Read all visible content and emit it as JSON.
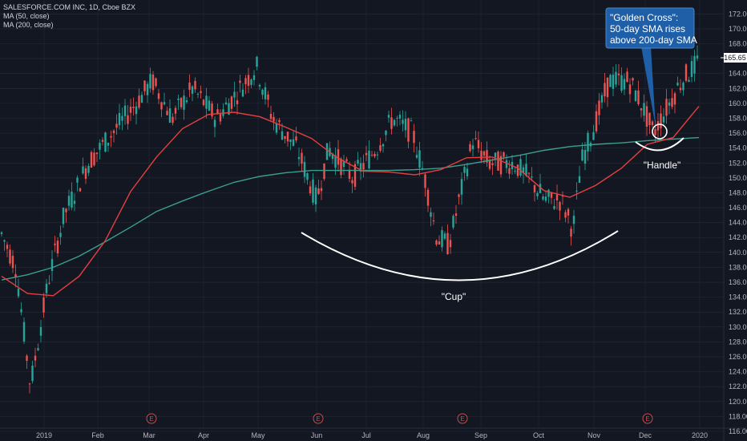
{
  "legend": {
    "symbol": "SALESFORCE.COM INC, 1D, Cboe BZX",
    "ma50": "MA (50, close)",
    "ma200": "MA (200, close)"
  },
  "colors": {
    "background": "#131722",
    "grid": "#262b3a",
    "up": "#26a69a",
    "down": "#ef5350",
    "ma50": "#e53f3f",
    "ma200": "#3b9e8f",
    "annotation": "#ffffff",
    "callout": "#1f5fa8",
    "earnings": "#c74d47",
    "price_tag": "#ffffff"
  },
  "chart_data": {
    "type": "candlestick",
    "ylim": [
      116,
      173
    ],
    "y_ticks": [
      "116.00",
      "118.00",
      "120.00",
      "122.00",
      "124.00",
      "126.00",
      "128.00",
      "130.00",
      "132.00",
      "134.00",
      "136.00",
      "138.00",
      "140.00",
      "142.00",
      "144.00",
      "146.00",
      "148.00",
      "150.00",
      "152.00",
      "154.00",
      "156.00",
      "158.00",
      "160.00",
      "162.00",
      "164.00",
      "166.00",
      "168.00",
      "170.00",
      "172.00"
    ],
    "x_labels": [
      "2019",
      "Feb",
      "Mar",
      "Apr",
      "May",
      "Jun",
      "Jul",
      "Aug",
      "Sep",
      "Oct",
      "Nov",
      "Dec",
      "2020"
    ],
    "last_price": "165.65",
    "earnings_marker": "E",
    "earnings_months": [
      "Mar",
      "Jun",
      "Sep",
      "Dec"
    ],
    "series": [
      {
        "name": "MA (50, close)",
        "values": [
          136.8,
          134.5,
          134.2,
          136.8,
          141.5,
          148.2,
          152.8,
          156.6,
          158.5,
          158.8,
          158.2,
          156.8,
          155.3,
          152.7,
          150.9,
          150.8,
          150.4,
          151.1,
          152.7,
          152.8,
          151.3,
          148.3,
          147.4,
          149.0,
          151.3,
          154.5,
          155.4,
          159.6
        ]
      },
      {
        "name": "MA (200, close)",
        "values": [
          136.3,
          137.0,
          138.0,
          139.5,
          141.4,
          143.4,
          145.5,
          146.9,
          148.2,
          149.4,
          150.2,
          150.7,
          151.0,
          151.0,
          151.0,
          151.0,
          151.1,
          151.3,
          151.8,
          152.4,
          153.0,
          153.7,
          154.2,
          154.5,
          154.7,
          155.0,
          155.2,
          155.4
        ]
      }
    ],
    "annotations": {
      "cup": "\"Cup\"",
      "handle": "\"Handle\"",
      "callout": [
        "\"Golden Cross\":",
        "50-day SMA rises",
        "above 200-day SMA"
      ]
    }
  }
}
